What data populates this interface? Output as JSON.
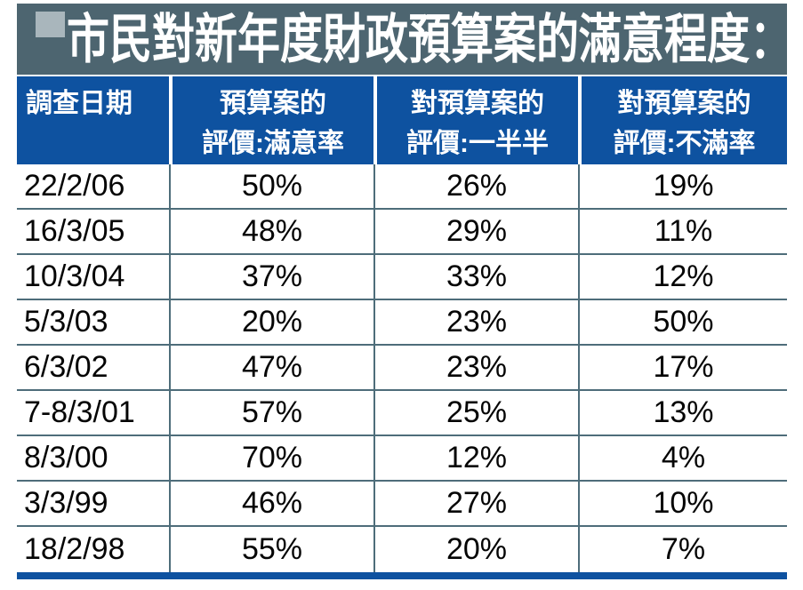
{
  "title": "市民對新年度財政預算案的滿意程度：",
  "header": {
    "col1_line1": "調查日期",
    "col1_line2": "",
    "col2_line1": "預算案的",
    "col2_line2": "評價:滿意率",
    "col3_line1": "對預算案的",
    "col3_line2": "評價:一半半",
    "col4_line1": "對預算案的",
    "col4_line2": "評價:不滿率"
  },
  "rows": [
    [
      "22/2/06",
      "50%",
      "26%",
      "19%"
    ],
    [
      "16/3/05",
      "48%",
      "29%",
      "11%"
    ],
    [
      "10/3/04",
      "37%",
      "33%",
      "12%"
    ],
    [
      "5/3/03",
      "20%",
      "23%",
      "50%"
    ],
    [
      "6/3/02",
      "47%",
      "23%",
      "17%"
    ],
    [
      "7-8/3/01",
      "57%",
      "25%",
      "13%"
    ],
    [
      "8/3/00",
      "70%",
      "12%",
      "4%"
    ],
    [
      "3/3/99",
      "46%",
      "27%",
      "10%"
    ],
    [
      "18/2/98",
      "55%",
      "20%",
      "7%"
    ]
  ],
  "colors": {
    "title_band": "#4d6570",
    "bullet_square": "#a9b6bc",
    "header_blue": "#0e52a0",
    "grid_line": "#4e6d7a",
    "bottom_bar": "#0e52a0",
    "title_text": "#ffffff",
    "body_text": "#050505"
  },
  "chart_data": {
    "type": "table",
    "title": "市民對新年度財政預算案的滿意程度：",
    "columns": [
      "調查日期",
      "預算案的評價:滿意率",
      "對預算案的評價:一半半",
      "對預算案的評價:不滿率"
    ],
    "categories": [
      "22/2/06",
      "16/3/05",
      "10/3/04",
      "5/3/03",
      "6/3/02",
      "7-8/3/01",
      "8/3/00",
      "3/3/99",
      "18/2/98"
    ],
    "series": [
      {
        "name": "滿意率",
        "values": [
          50,
          48,
          37,
          20,
          47,
          57,
          70,
          46,
          55
        ]
      },
      {
        "name": "一半半",
        "values": [
          26,
          29,
          33,
          23,
          23,
          25,
          12,
          27,
          20
        ]
      },
      {
        "name": "不滿率",
        "values": [
          19,
          11,
          12,
          50,
          17,
          13,
          4,
          10,
          7
        ]
      }
    ],
    "unit": "%",
    "rows": [
      [
        "22/2/06",
        "50%",
        "26%",
        "19%"
      ],
      [
        "16/3/05",
        "48%",
        "29%",
        "11%"
      ],
      [
        "10/3/04",
        "37%",
        "33%",
        "12%"
      ],
      [
        "5/3/03",
        "20%",
        "23%",
        "50%"
      ],
      [
        "6/3/02",
        "47%",
        "23%",
        "17%"
      ],
      [
        "7-8/3/01",
        "57%",
        "25%",
        "13%"
      ],
      [
        "8/3/00",
        "70%",
        "12%",
        "4%"
      ],
      [
        "3/3/99",
        "46%",
        "27%",
        "10%"
      ],
      [
        "18/2/98",
        "55%",
        "20%",
        "7%"
      ]
    ]
  }
}
